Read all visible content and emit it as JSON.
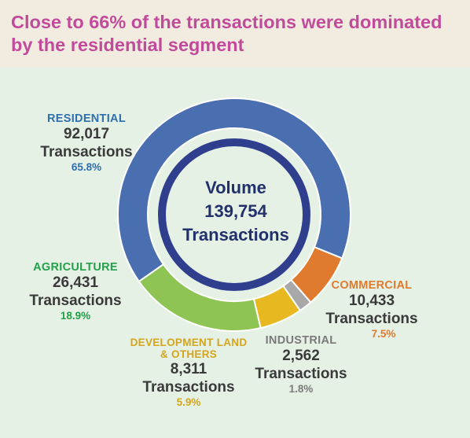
{
  "header": {
    "title": "Close to 66% of the transactions were dominated by the residential segment"
  },
  "center": {
    "line1": "Volume",
    "line2": "139,754",
    "line3": "Transactions"
  },
  "colors": {
    "residential": "#4a6fb0",
    "commercial": "#e07a2e",
    "industrial": "#a8a8a8",
    "development": "#e8b820",
    "agriculture": "#8dc453",
    "inner_ring": "#2f3f8e"
  },
  "chart_data": {
    "type": "pie",
    "title": "",
    "center_label": "Volume 139,754 Transactions",
    "total": 139754,
    "categories": [
      "RESIDENTIAL",
      "COMMERCIAL",
      "INDUSTRIAL",
      "DEVELOPMENT LAND & OTHERS",
      "AGRICULTURE"
    ],
    "values": [
      92017,
      10433,
      2562,
      8311,
      26431
    ],
    "percentages": [
      65.8,
      7.5,
      1.8,
      5.9,
      18.9
    ],
    "series": [
      {
        "name": "RESIDENTIAL",
        "value": 92017,
        "value_label": "92,017",
        "unit": "Transactions",
        "percent": "65.8%",
        "color": "#4a6fb0"
      },
      {
        "name": "COMMERCIAL",
        "value": 10433,
        "value_label": "10,433",
        "unit": "Transactions",
        "percent": "7.5%",
        "color": "#e07a2e"
      },
      {
        "name": "INDUSTRIAL",
        "value": 2562,
        "value_label": "2,562",
        "unit": "Transactions",
        "percent": "1.8%",
        "color": "#a8a8a8"
      },
      {
        "name_line1": "DEVELOPMENT LAND",
        "name_line2": "& OTHERS",
        "value": 8311,
        "value_label": "8,311",
        "unit": "Transactions",
        "percent": "5.9%",
        "color": "#e8b820"
      },
      {
        "name": "AGRICULTURE",
        "value": 26431,
        "value_label": "26,431",
        "unit": "Transactions",
        "percent": "18.9%",
        "color": "#8dc453"
      }
    ]
  }
}
